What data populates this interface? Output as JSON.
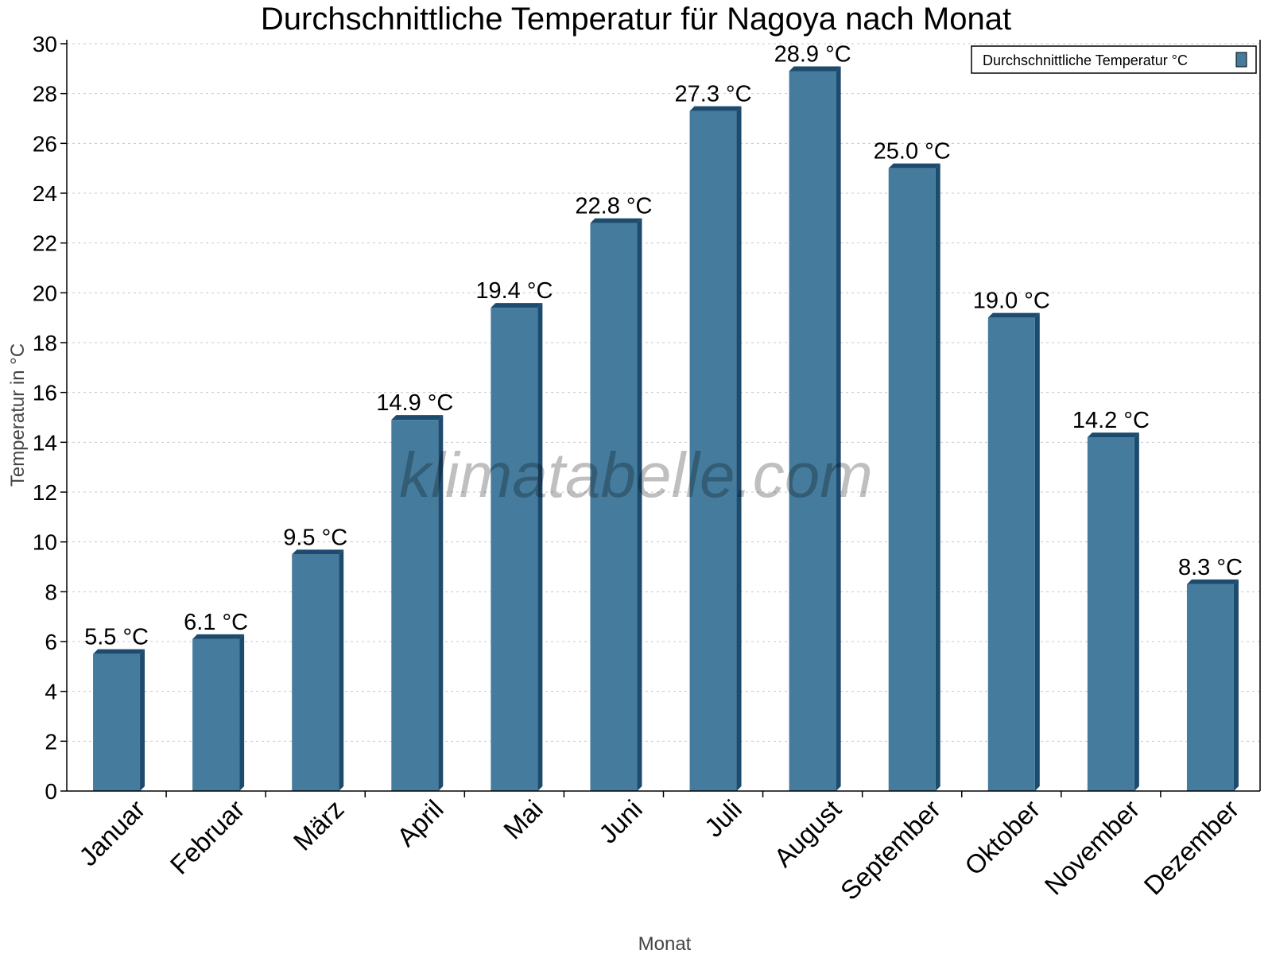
{
  "chart_data": {
    "type": "bar",
    "title": "Durchschnittliche Temperatur für Nagoya nach Monat",
    "xlabel": "Monat",
    "ylabel": "Temperatur in °C",
    "categories": [
      "Januar",
      "Februar",
      "März",
      "April",
      "Mai",
      "Juni",
      "Juli",
      "August",
      "September",
      "Oktober",
      "November",
      "Dezember"
    ],
    "series": [
      {
        "name": "Durchschnittliche Temperatur °C",
        "values": [
          5.5,
          6.1,
          9.5,
          14.9,
          19.4,
          22.8,
          27.3,
          28.9,
          25.0,
          19.0,
          14.2,
          8.3
        ]
      }
    ],
    "data_labels": [
      "5.5 °C",
      "6.1 °C",
      "9.5 °C",
      "14.9 °C",
      "19.4 °C",
      "22.8 °C",
      "27.3 °C",
      "28.9 °C",
      "25.0 °C",
      "19.0 °C",
      "14.2 °C",
      "8.3 °C"
    ],
    "ylim": [
      0,
      30
    ],
    "yticks": [
      0,
      2,
      4,
      6,
      8,
      10,
      12,
      14,
      16,
      18,
      20,
      22,
      24,
      26,
      28,
      30
    ],
    "grid": true,
    "legend_position": "top-right",
    "colors": {
      "bar": "#457b9d",
      "bar_side": "#1d4b6e",
      "grid": "#c8c8c8"
    },
    "watermark": "klimatabelle.com"
  }
}
